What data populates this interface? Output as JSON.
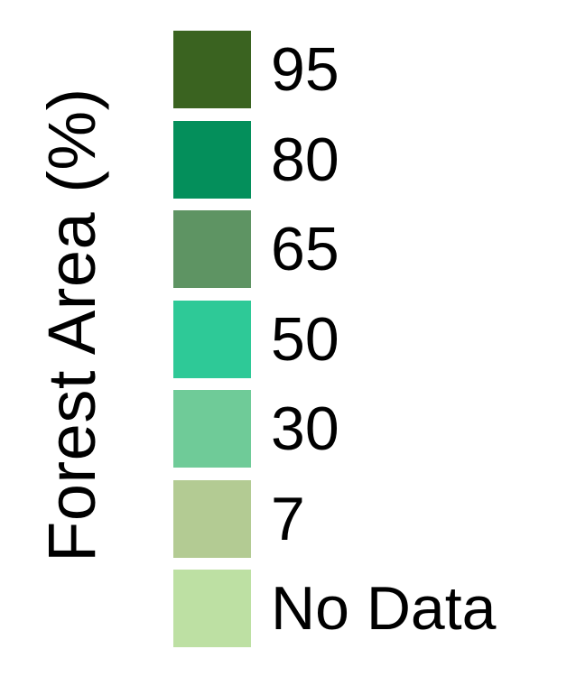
{
  "chart_data": {
    "type": "legend",
    "title": "Forest Area (%)",
    "entries": [
      {
        "label": "95",
        "color": "#3a6320"
      },
      {
        "label": "80",
        "color": "#048f5b"
      },
      {
        "label": "65",
        "color": "#5e9463"
      },
      {
        "label": "50",
        "color": "#2ec997"
      },
      {
        "label": "30",
        "color": "#6fcb98"
      },
      {
        "label": "7",
        "color": "#b3cb93"
      },
      {
        "label": "No Data",
        "color": "#bde0a3"
      }
    ]
  }
}
